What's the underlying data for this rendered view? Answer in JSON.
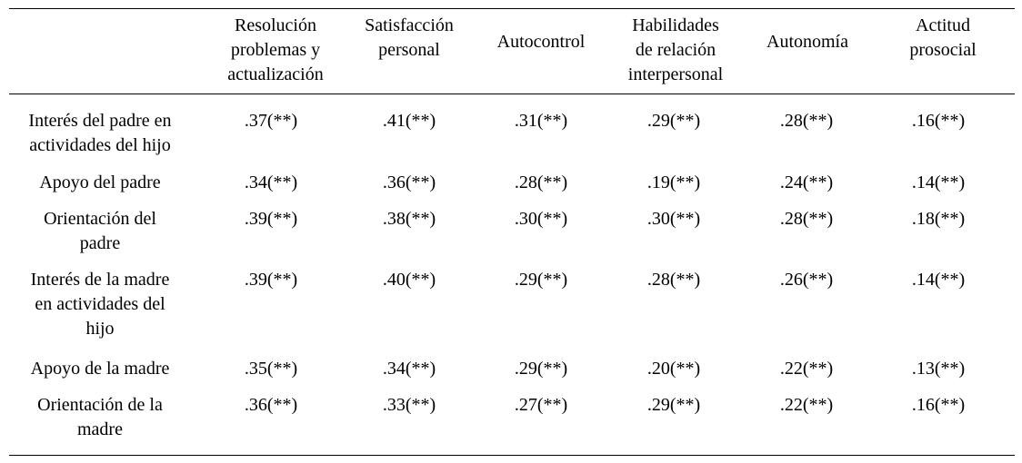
{
  "table": {
    "columns": [
      "Resolución\nproblemas y\nactualización",
      "Satisfacción\npersonal",
      "Autocontrol",
      "Habilidades\nde relación\ninterpersonal",
      "Autonomía",
      "Actitud\nprosocial"
    ],
    "rows": [
      {
        "label": "Interés del padre en\nactividades del hijo",
        "values": [
          ".37(**)",
          ".41(**)",
          ".31(**)",
          ".29(**)",
          ".28(**)",
          ".16(**)"
        ]
      },
      {
        "label": "Apoyo del padre",
        "values": [
          ".34(**)",
          ".36(**)",
          ".28(**)",
          ".19(**)",
          ".24(**)",
          ".14(**)"
        ]
      },
      {
        "label": "Orientación del\npadre",
        "values": [
          ".39(**)",
          ".38(**)",
          ".30(**)",
          ".30(**)",
          ".28(**)",
          ".18(**)"
        ]
      },
      {
        "label": "Interés de la madre\nen actividades del\nhijo",
        "values": [
          ".39(**)",
          ".40(**)",
          ".29(**)",
          ".28(**)",
          ".26(**)",
          ".14(**)"
        ]
      },
      {
        "label": "Apoyo de la madre",
        "values": [
          ".35(**)",
          ".34(**)",
          ".29(**)",
          ".20(**)",
          ".22(**)",
          ".13(**)"
        ]
      },
      {
        "label": "Orientación de la\nmadre",
        "values": [
          ".36(**)",
          ".33(**)",
          ".27(**)",
          ".29(**)",
          ".22(**)",
          ".16(**)"
        ]
      }
    ]
  }
}
